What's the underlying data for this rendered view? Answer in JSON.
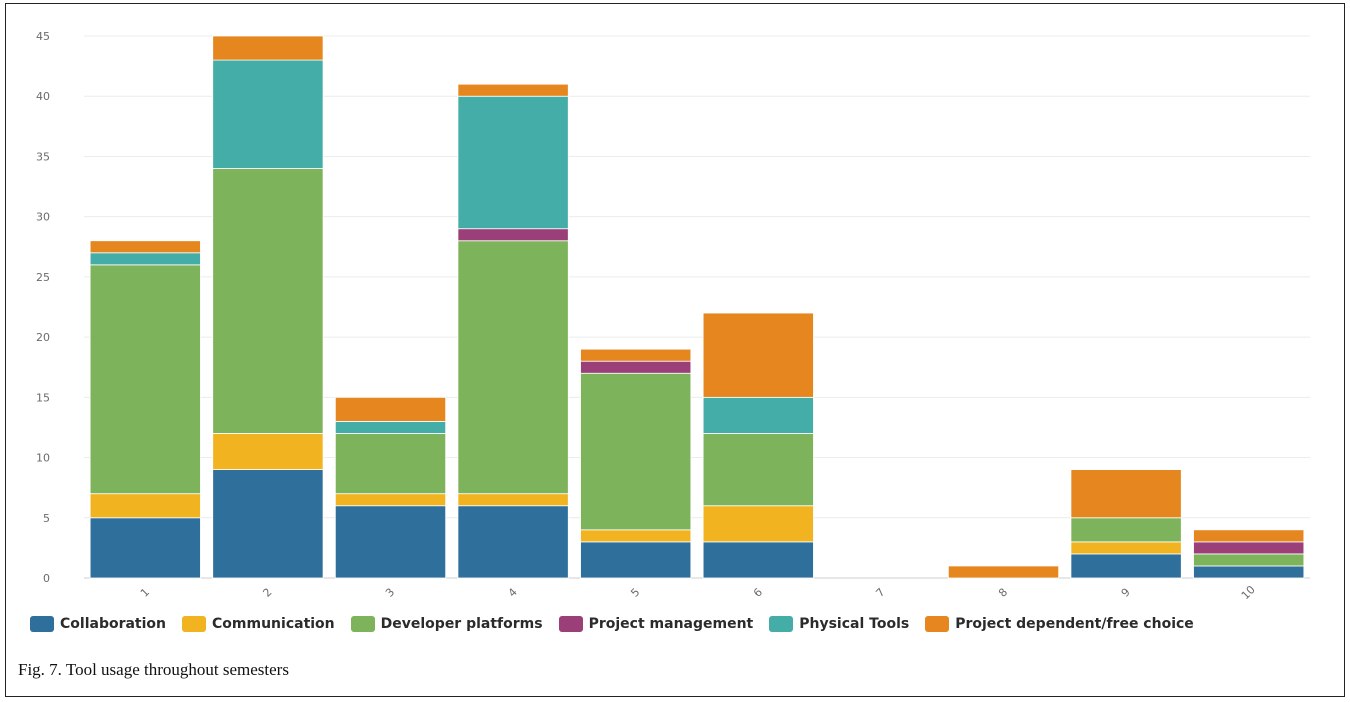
{
  "chart_data": {
    "type": "bar",
    "stacked": true,
    "categories": [
      "1",
      "2",
      "3",
      "4",
      "5",
      "6",
      "7",
      "8",
      "9",
      "10"
    ],
    "series": [
      {
        "name": "Collaboration",
        "color": "#2e6f9c",
        "values": [
          5,
          9,
          6,
          6,
          3,
          3,
          0,
          0,
          2,
          1
        ]
      },
      {
        "name": "Communication",
        "color": "#f2b321",
        "values": [
          2,
          3,
          1,
          1,
          1,
          3,
          0,
          0,
          1,
          0
        ]
      },
      {
        "name": "Developer platforms",
        "color": "#7db35a",
        "values": [
          19,
          22,
          5,
          21,
          13,
          6,
          0,
          0,
          2,
          1
        ]
      },
      {
        "name": "Project management",
        "color": "#9b3f78",
        "values": [
          0,
          0,
          0,
          1,
          1,
          0,
          0,
          0,
          0,
          1
        ]
      },
      {
        "name": "Physical Tools",
        "color": "#45ada8",
        "values": [
          1,
          9,
          1,
          11,
          0,
          3,
          0,
          0,
          0,
          0
        ]
      },
      {
        "name": "Project dependent/free choice",
        "color": "#e5861f",
        "values": [
          1,
          2,
          2,
          1,
          1,
          7,
          0,
          1,
          4,
          1
        ]
      }
    ],
    "ylim": [
      0,
      45
    ],
    "yticks": [
      "0",
      "5",
      "10",
      "15",
      "20",
      "25",
      "30",
      "35",
      "40",
      "45"
    ],
    "grid": true,
    "legend_position": "bottom-left",
    "title": "",
    "xlabel": "",
    "ylabel": ""
  },
  "caption": "Fig. 7. Tool usage throughout semesters"
}
